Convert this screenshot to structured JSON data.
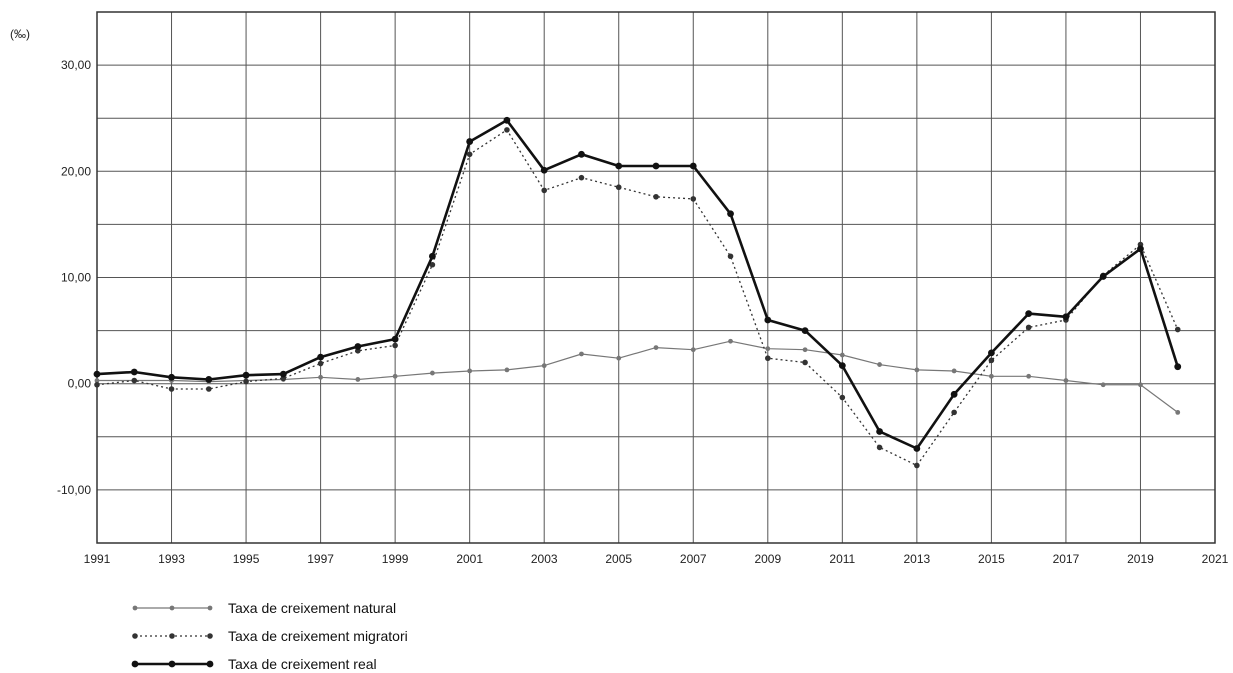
{
  "chart_data": {
    "type": "line",
    "unit": "(‰)",
    "x": [
      1991,
      1992,
      1993,
      1994,
      1995,
      1996,
      1997,
      1998,
      1999,
      2000,
      2001,
      2002,
      2003,
      2004,
      2005,
      2006,
      2007,
      2008,
      2009,
      2010,
      2011,
      2012,
      2013,
      2014,
      2015,
      2016,
      2017,
      2018,
      2019,
      2020
    ],
    "xlim": [
      1991,
      2021
    ],
    "ylim": [
      -15,
      35
    ],
    "x_ticks": [
      1991,
      1993,
      1995,
      1997,
      1999,
      2001,
      2003,
      2005,
      2007,
      2009,
      2011,
      2013,
      2015,
      2017,
      2019,
      2021
    ],
    "x_tick_labels": [
      "1991",
      "1993",
      "1995",
      "1997",
      "1999",
      "2001",
      "2003",
      "2005",
      "2007",
      "2009",
      "2011",
      "2013",
      "2015",
      "2017",
      "2019",
      "2021"
    ],
    "y_ticks": [
      -10,
      0,
      10,
      20,
      30
    ],
    "y_tick_labels": [
      "-10,00",
      "0,00",
      "10,00",
      "20,00",
      "30,00"
    ],
    "grid": true,
    "legend_position": "bottom-left",
    "series": [
      {
        "name": "Taxa de creixement natural",
        "style": "solid-thin",
        "color": "#777777",
        "values": [
          0.3,
          0.3,
          0.3,
          0.2,
          0.3,
          0.4,
          0.6,
          0.4,
          0.7,
          1.0,
          1.2,
          1.3,
          1.7,
          2.8,
          2.4,
          3.4,
          3.2,
          4.0,
          3.3,
          3.2,
          2.7,
          1.8,
          1.3,
          1.2,
          0.7,
          0.7,
          0.3,
          -0.1,
          -0.1,
          -2.7
        ]
      },
      {
        "name": "Taxa de creixement migratori",
        "style": "dotted",
        "color": "#333333",
        "values": [
          -0.1,
          0.3,
          -0.5,
          -0.5,
          0.2,
          0.5,
          1.9,
          3.1,
          3.6,
          11.2,
          21.6,
          23.9,
          18.2,
          19.4,
          18.5,
          17.6,
          17.4,
          12.0,
          2.4,
          2.0,
          -1.3,
          -6.0,
          -7.7,
          -2.7,
          2.2,
          5.3,
          6.0,
          10.2,
          13.1,
          5.1
        ]
      },
      {
        "name": "Taxa de creixement real",
        "style": "solid-thick",
        "color": "#111111",
        "values": [
          0.9,
          1.1,
          0.6,
          0.4,
          0.8,
          0.9,
          2.5,
          3.5,
          4.2,
          12.0,
          22.8,
          24.8,
          20.1,
          21.6,
          20.5,
          20.5,
          20.5,
          16.0,
          6.0,
          5.0,
          1.7,
          -4.5,
          -6.1,
          -1.0,
          2.9,
          6.6,
          6.3,
          10.1,
          12.7,
          1.6
        ]
      }
    ]
  }
}
